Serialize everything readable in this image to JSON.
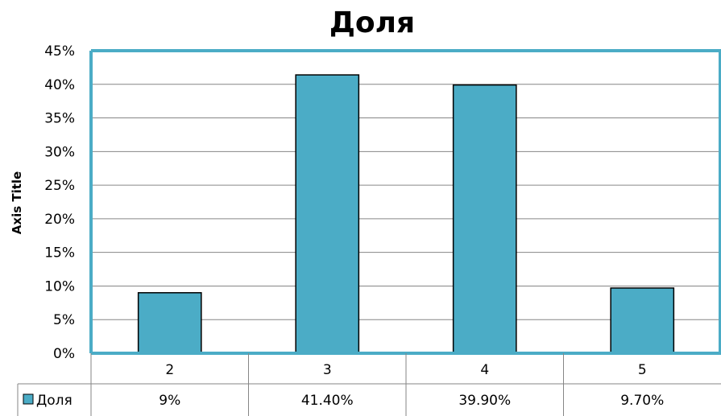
{
  "chart_data": {
    "type": "bar",
    "title": "Доля",
    "ylabel": "Axis Title",
    "xlabel": "",
    "categories": [
      "2",
      "3",
      "4",
      "5"
    ],
    "series": [
      {
        "name": "Доля",
        "values": [
          0.09,
          0.414,
          0.399,
          0.097
        ],
        "table_labels": [
          "9%",
          "41.40%",
          "39.90%",
          "9.70%"
        ]
      }
    ],
    "ylim": [
      0,
      0.45
    ],
    "yticks": [
      0,
      0.05,
      0.1,
      0.15,
      0.2,
      0.25,
      0.3,
      0.35,
      0.4,
      0.45
    ],
    "ytick_labels": [
      "0%",
      "5%",
      "10%",
      "15%",
      "20%",
      "25%",
      "30%",
      "35%",
      "40%",
      "45%"
    ],
    "grid": true,
    "legend": "data-table",
    "colors": {
      "bar_fill": "#4BACC6",
      "bar_stroke": "#000000",
      "axis_accent": "#4BACC6",
      "grid": "#868686"
    }
  }
}
